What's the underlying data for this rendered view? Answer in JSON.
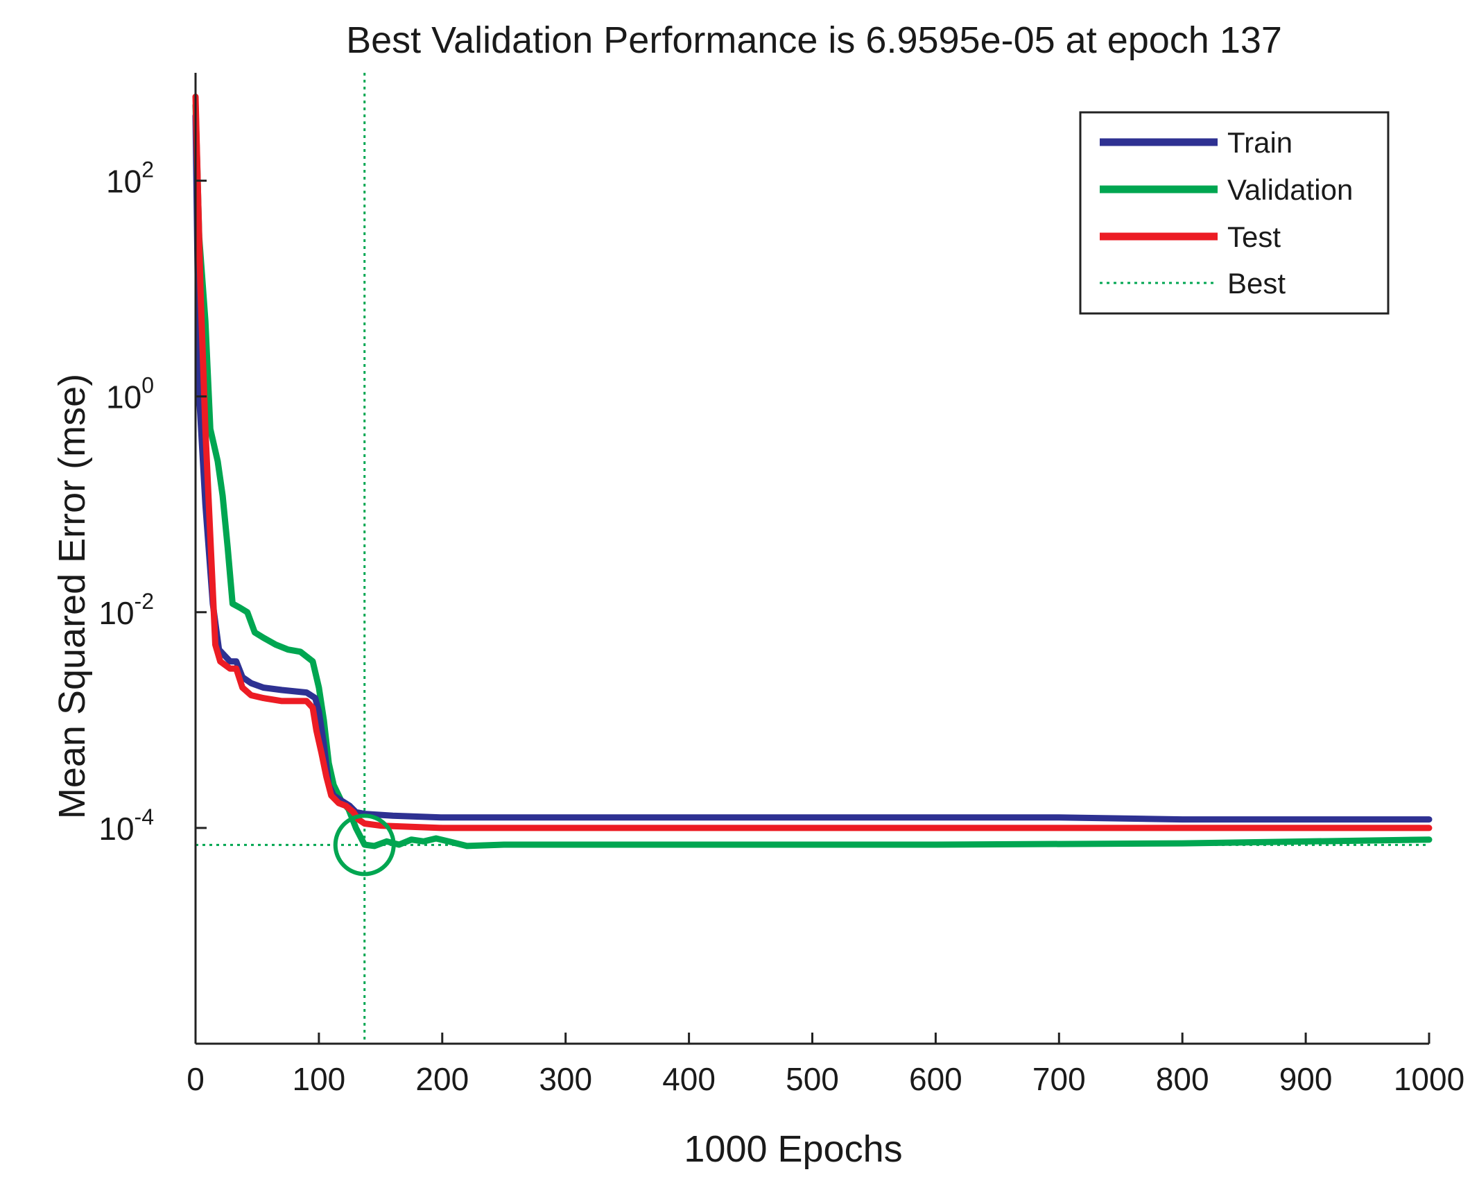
{
  "chart_data": {
    "type": "line",
    "title": "Best Validation Performance is 6.9595e-05 at epoch 137",
    "xlabel": "1000 Epochs",
    "ylabel": "Mean Squared Error  (mse)",
    "xlim": [
      0,
      1000
    ],
    "ylim": [
      1e-06,
      1000
    ],
    "yscale": "log",
    "x_ticks": [
      {
        "value": 0,
        "label": "0"
      },
      {
        "value": 100,
        "label": "100"
      },
      {
        "value": 200,
        "label": "200"
      },
      {
        "value": 300,
        "label": "300"
      },
      {
        "value": 400,
        "label": "400"
      },
      {
        "value": 500,
        "label": "500"
      },
      {
        "value": 600,
        "label": "600"
      },
      {
        "value": 700,
        "label": "700"
      },
      {
        "value": 800,
        "label": "800"
      },
      {
        "value": 900,
        "label": "900"
      },
      {
        "value": 1000,
        "label": "1000"
      }
    ],
    "y_ticks": [
      {
        "value": 100,
        "base": "10",
        "exp": "2"
      },
      {
        "value": 1,
        "base": "10",
        "exp": "0"
      },
      {
        "value": 0.01,
        "base": "10",
        "exp": "-2"
      },
      {
        "value": 0.0001,
        "base": "10",
        "exp": "-4"
      }
    ],
    "legend_position": "top-right",
    "best": {
      "epoch": 137,
      "value": 6.9595e-05,
      "label": "Best",
      "color": "#00a651"
    },
    "series": [
      {
        "name": "Train",
        "color": "#2e3192",
        "points": [
          [
            0,
            400
          ],
          [
            3,
            1.0
          ],
          [
            8,
            0.1
          ],
          [
            14,
            0.012
          ],
          [
            19,
            0.0045
          ],
          [
            28,
            0.0035
          ],
          [
            33,
            0.0035
          ],
          [
            38,
            0.0025
          ],
          [
            45,
            0.0022
          ],
          [
            55,
            0.002
          ],
          [
            70,
            0.0019
          ],
          [
            90,
            0.0018
          ],
          [
            97,
            0.0016
          ],
          [
            100,
            0.0012
          ],
          [
            104,
            0.0006
          ],
          [
            108,
            0.00025
          ],
          [
            112,
            0.0002
          ],
          [
            118,
            0.00018
          ],
          [
            125,
            0.00016
          ],
          [
            130,
            0.00014
          ],
          [
            137,
            0.000135
          ],
          [
            160,
            0.00013
          ],
          [
            200,
            0.000125
          ],
          [
            400,
            0.000125
          ],
          [
            700,
            0.000125
          ],
          [
            800,
            0.00012
          ],
          [
            1000,
            0.00012
          ]
        ]
      },
      {
        "name": "Validation",
        "color": "#00a651",
        "points": [
          [
            0,
            500
          ],
          [
            3,
            30
          ],
          [
            8,
            5
          ],
          [
            12,
            0.5
          ],
          [
            18,
            0.25
          ],
          [
            22,
            0.12
          ],
          [
            26,
            0.04
          ],
          [
            30,
            0.012
          ],
          [
            36,
            0.011
          ],
          [
            42,
            0.01
          ],
          [
            48,
            0.0065
          ],
          [
            55,
            0.0058
          ],
          [
            65,
            0.005
          ],
          [
            75,
            0.0045
          ],
          [
            85,
            0.0043
          ],
          [
            95,
            0.0035
          ],
          [
            100,
            0.002
          ],
          [
            104,
            0.001
          ],
          [
            108,
            0.0004
          ],
          [
            112,
            0.00025
          ],
          [
            118,
            0.00018
          ],
          [
            124,
            0.00015
          ],
          [
            130,
            0.0001
          ],
          [
            137,
            7e-05
          ],
          [
            145,
            6.8e-05
          ],
          [
            155,
            7.5e-05
          ],
          [
            165,
            7e-05
          ],
          [
            175,
            7.8e-05
          ],
          [
            185,
            7.5e-05
          ],
          [
            195,
            8e-05
          ],
          [
            205,
            7.5e-05
          ],
          [
            220,
            6.8e-05
          ],
          [
            250,
            7e-05
          ],
          [
            400,
            7e-05
          ],
          [
            600,
            7e-05
          ],
          [
            800,
            7.2e-05
          ],
          [
            1000,
            7.8e-05
          ]
        ]
      },
      {
        "name": "Test",
        "color": "#ec1c24",
        "points": [
          [
            0,
            600
          ],
          [
            4,
            10
          ],
          [
            8,
            0.5
          ],
          [
            12,
            0.05
          ],
          [
            16,
            0.005
          ],
          [
            20,
            0.0035
          ],
          [
            28,
            0.003
          ],
          [
            33,
            0.003
          ],
          [
            38,
            0.002
          ],
          [
            45,
            0.0017
          ],
          [
            55,
            0.0016
          ],
          [
            70,
            0.0015
          ],
          [
            90,
            0.0015
          ],
          [
            95,
            0.0013
          ],
          [
            98,
            0.0008
          ],
          [
            102,
            0.0005
          ],
          [
            106,
            0.0003
          ],
          [
            110,
            0.0002
          ],
          [
            116,
            0.00017
          ],
          [
            122,
            0.00016
          ],
          [
            128,
            0.00014
          ],
          [
            132,
            0.00012
          ],
          [
            137,
            0.00011
          ],
          [
            150,
            0.000105
          ],
          [
            200,
            0.0001
          ],
          [
            400,
            0.0001
          ],
          [
            700,
            0.0001
          ],
          [
            1000,
            0.0001
          ]
        ]
      }
    ]
  }
}
